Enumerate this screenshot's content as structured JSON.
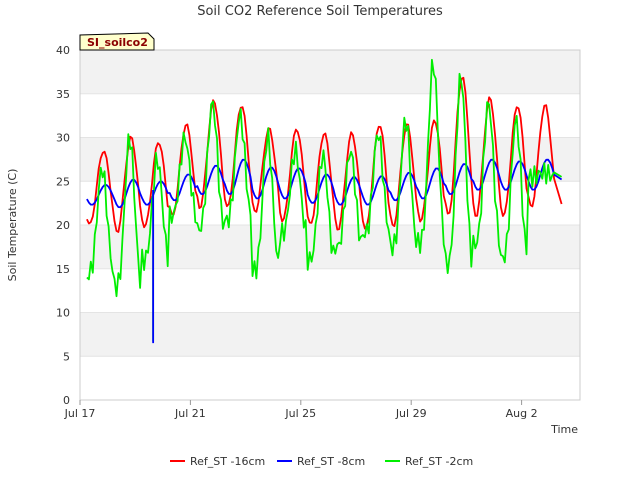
{
  "chart_data": {
    "type": "line",
    "title": "Soil CO2 Reference Soil Temperatures",
    "xlabel": "Time",
    "ylabel": "Soil Temperature (C)",
    "site_badge": "SI_soilco2",
    "ylim": [
      0,
      40
    ],
    "yticks": [
      0,
      5,
      10,
      15,
      20,
      25,
      30,
      35,
      40
    ],
    "xlim_days": [
      0,
      18
    ],
    "xticks": [
      {
        "day": 0,
        "label": "Jul 17"
      },
      {
        "day": 4,
        "label": "Jul 21"
      },
      {
        "day": 8,
        "label": "Jul 25"
      },
      {
        "day": 12,
        "label": "Jul 29"
      },
      {
        "day": 16,
        "label": "Aug 2"
      }
    ],
    "grid": true,
    "legend_position": "bottom",
    "series": [
      {
        "name": "Ref_ST -16cm",
        "color": "#ff0000",
        "daily_min": [
          20.0,
          19.2,
          19.8,
          21.0,
          22.0,
          22.0,
          21.5,
          20.5,
          20.0,
          19.5,
          19.5,
          19.8,
          20.5,
          21.0,
          21.0,
          21.0,
          22.0
        ],
        "daily_max": [
          28.5,
          30.0,
          29.5,
          31.5,
          34.2,
          33.7,
          31.0,
          31.0,
          30.5,
          30.5,
          31.5,
          31.5,
          32.0,
          37.0,
          34.5,
          33.7,
          33.7
        ],
        "end_value": 22.4
      },
      {
        "name": "Ref_ST -8cm",
        "color": "#0000ff",
        "daily_min": [
          22.3,
          22.0,
          22.3,
          22.8,
          23.5,
          23.5,
          23.0,
          23.0,
          22.5,
          22.3,
          22.3,
          22.8,
          23.0,
          23.5,
          24.0,
          24.0,
          24.0
        ],
        "daily_max": [
          24.6,
          25.2,
          25.0,
          25.8,
          26.8,
          27.5,
          26.6,
          26.5,
          25.8,
          25.5,
          25.6,
          26.0,
          26.5,
          27.0,
          27.5,
          27.3,
          27.5
        ],
        "end_value": 25.2
      },
      {
        "name": "Ref_ST -2cm",
        "color": "#00ee00",
        "daily_min": [
          14.5,
          13.0,
          16.0,
          21.0,
          19.5,
          20.5,
          14.8,
          19.0,
          16.0,
          17.5,
          19.0,
          17.5,
          18.0,
          15.5,
          17.8,
          16.2,
          25.5
        ],
        "daily_max": [
          26.5,
          30.0,
          27.5,
          30.0,
          34.0,
          32.5,
          30.0,
          28.5,
          28.0,
          28.5,
          30.5,
          32.0,
          38.5,
          37.0,
          34.0,
          32.0,
          26.0
        ],
        "end_value": 25.5
      }
    ],
    "anomalies": [
      {
        "series": "Ref_ST -2cm",
        "day": 2.65,
        "value": 6.7
      },
      {
        "series": "Ref_ST -8cm",
        "day": 2.65,
        "value": 6.5
      }
    ]
  }
}
